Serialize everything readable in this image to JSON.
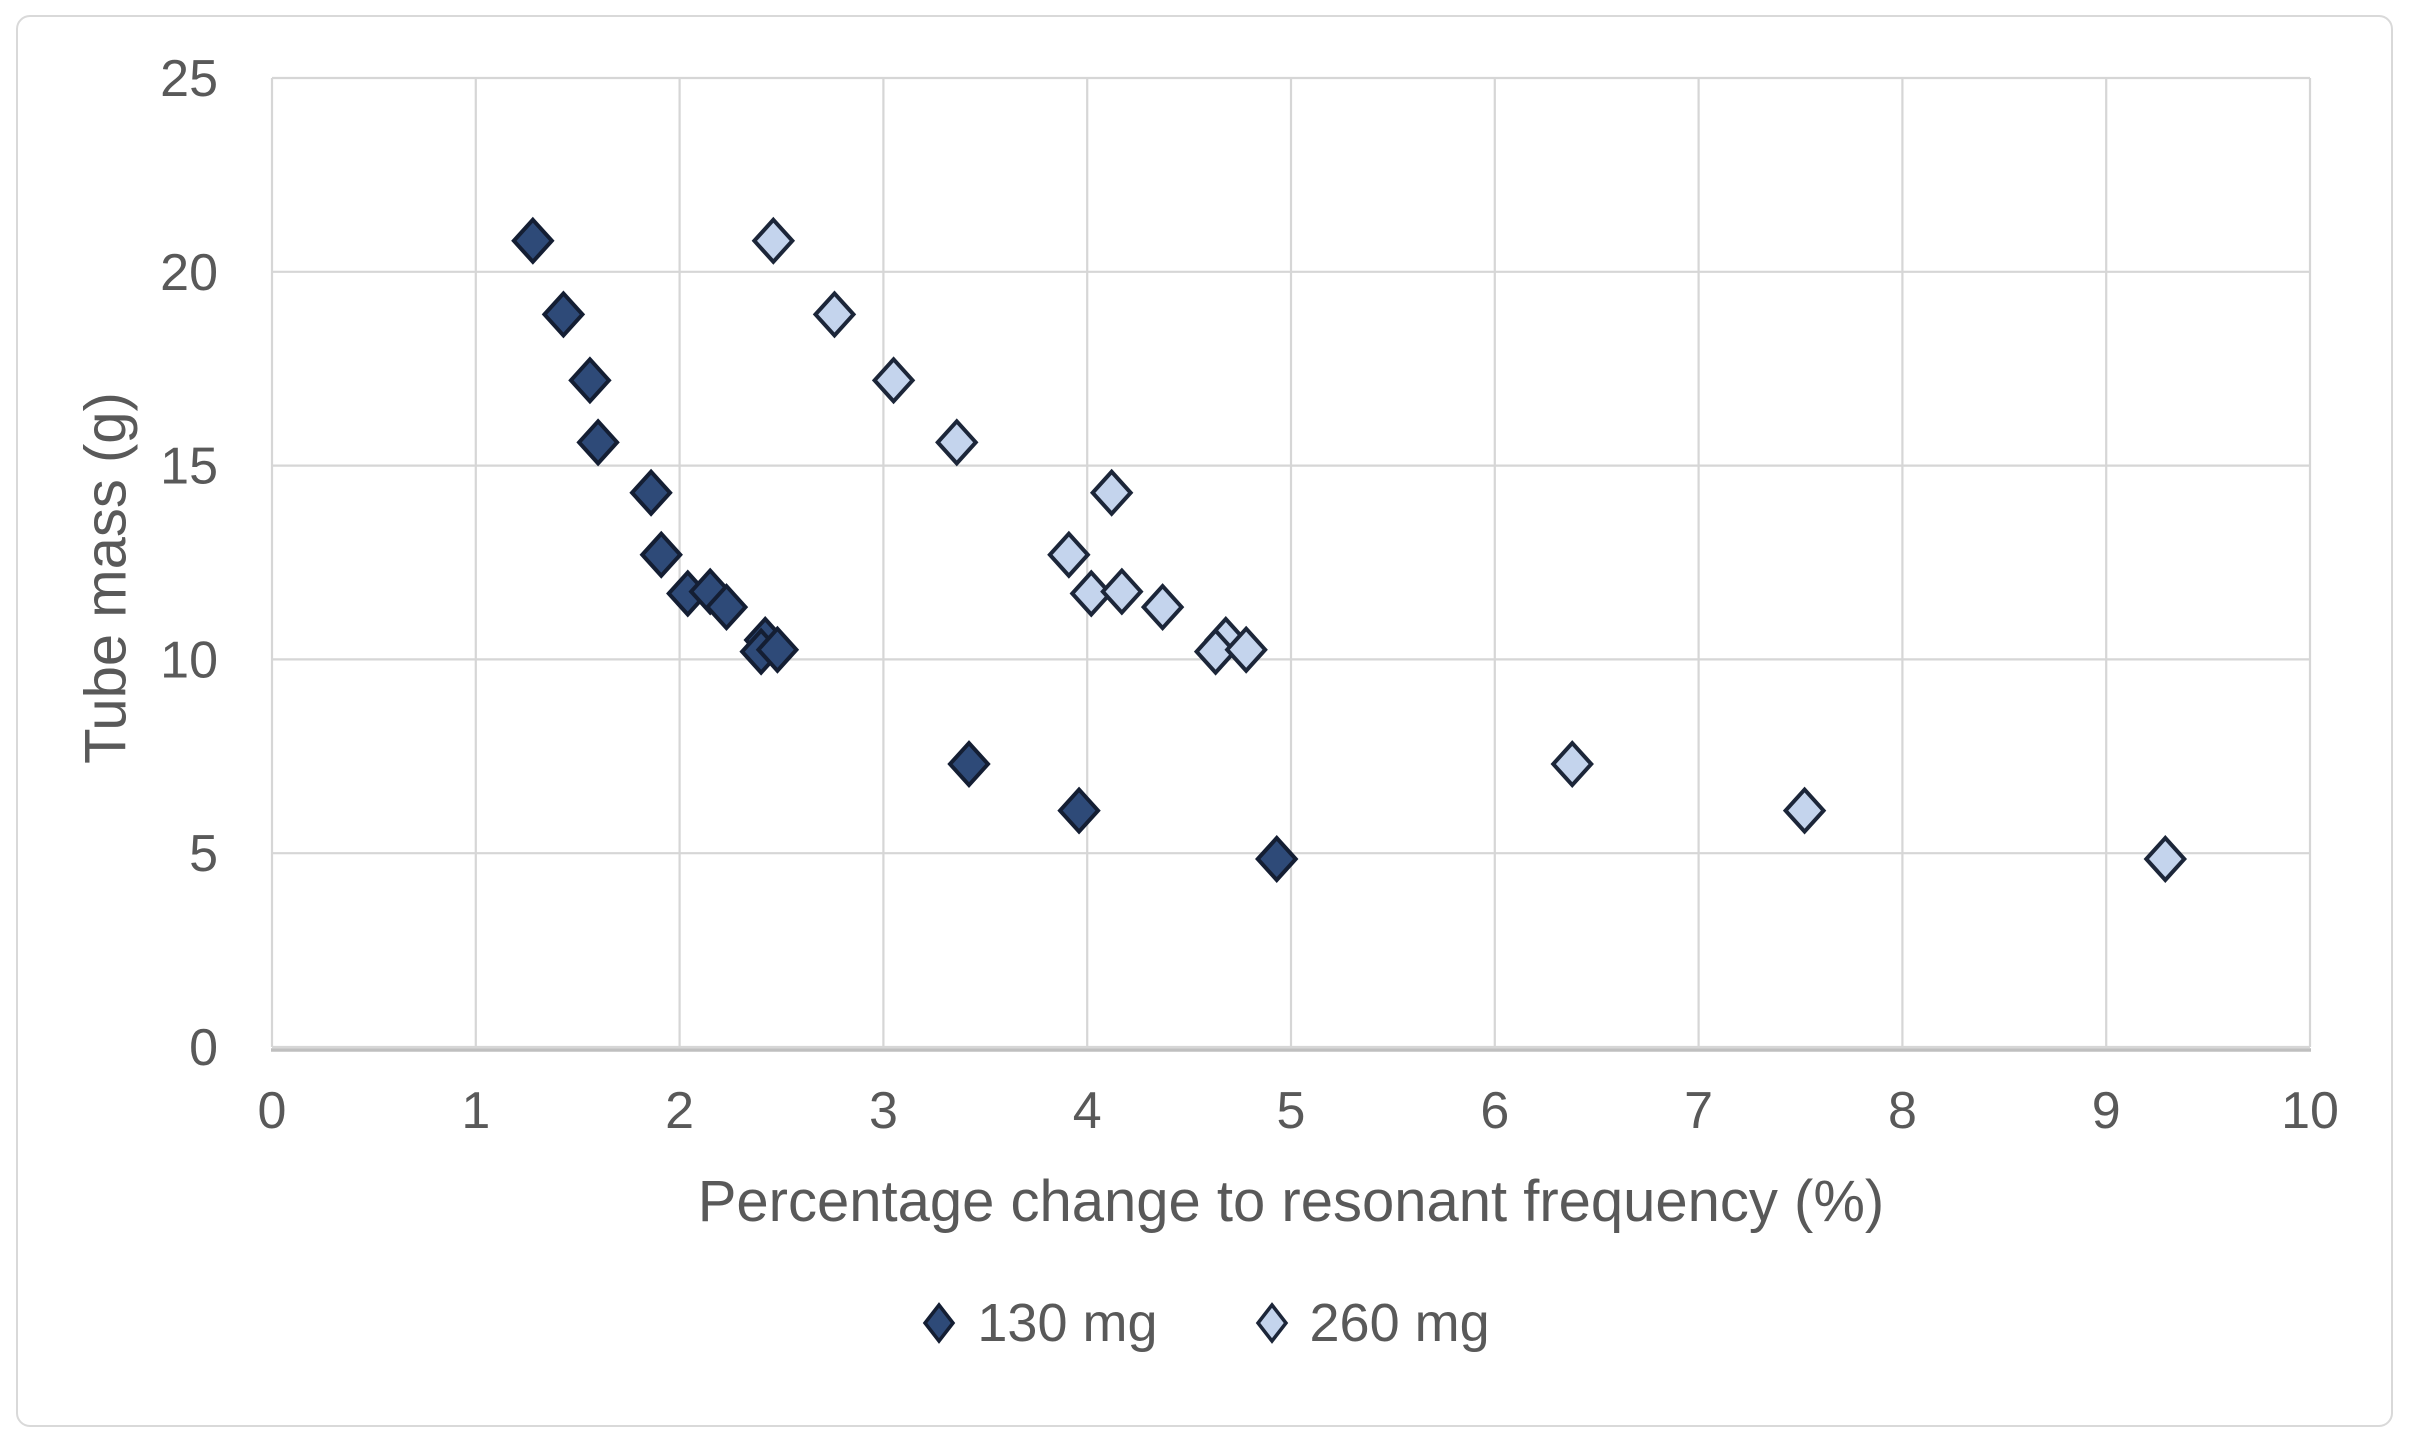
{
  "chart_data": {
    "type": "scatter",
    "title": "",
    "xlabel": "Percentage change to resonant frequency (%)",
    "ylabel": "Tube mass (g)",
    "xlim": [
      0,
      10
    ],
    "ylim": [
      0,
      25
    ],
    "x_ticks": [
      0,
      1,
      2,
      3,
      4,
      5,
      6,
      7,
      8,
      9,
      10
    ],
    "y_ticks": [
      0,
      5,
      10,
      15,
      20,
      25
    ],
    "grid": true,
    "legend_position": "bottom",
    "series": [
      {
        "name": "130 mg",
        "marker": "diamond",
        "fill": "#2e4a78",
        "stroke": "#141e33",
        "points": [
          [
            1.28,
            20.8
          ],
          [
            1.43,
            18.9
          ],
          [
            1.56,
            17.2
          ],
          [
            1.6,
            15.6
          ],
          [
            1.86,
            14.3
          ],
          [
            1.91,
            12.7
          ],
          [
            2.04,
            11.7
          ],
          [
            2.15,
            11.75
          ],
          [
            2.23,
            11.35
          ],
          [
            2.42,
            10.5
          ],
          [
            2.4,
            10.2
          ],
          [
            2.48,
            10.25
          ],
          [
            3.42,
            7.3
          ],
          [
            3.96,
            6.1
          ],
          [
            4.93,
            4.85
          ]
        ]
      },
      {
        "name": "260 mg",
        "marker": "diamond",
        "fill": "#c4d4ed",
        "stroke": "#1c2639",
        "points": [
          [
            2.46,
            20.8
          ],
          [
            2.76,
            18.9
          ],
          [
            3.05,
            17.2
          ],
          [
            3.36,
            15.6
          ],
          [
            4.12,
            14.3
          ],
          [
            3.91,
            12.7
          ],
          [
            4.02,
            11.7
          ],
          [
            4.17,
            11.75
          ],
          [
            4.37,
            11.35
          ],
          [
            4.68,
            10.5
          ],
          [
            4.63,
            10.2
          ],
          [
            4.78,
            10.25
          ],
          [
            6.38,
            7.3
          ],
          [
            7.52,
            6.1
          ],
          [
            9.29,
            4.85
          ]
        ]
      }
    ]
  },
  "colors": {
    "background": "#ffffff",
    "chart_border": "#d9d9d9",
    "gridline": "#d6d6d6",
    "axis_line": "#bfbfbf",
    "text": "#595959"
  }
}
